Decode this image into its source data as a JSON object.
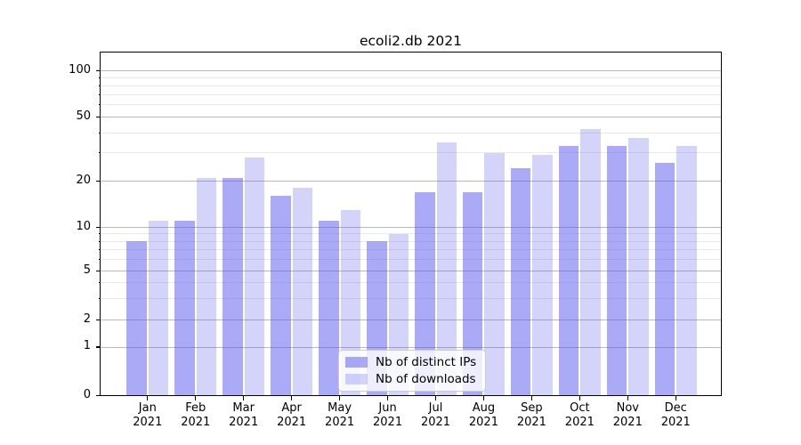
{
  "chart_data": {
    "type": "bar",
    "title": "ecoli2.db 2021",
    "categories": [
      "Jan 2021",
      "Feb 2021",
      "Mar 2021",
      "Apr 2021",
      "May 2021",
      "Jun 2021",
      "Jul 2021",
      "Aug 2021",
      "Sep 2021",
      "Oct 2021",
      "Nov 2021",
      "Dec 2021"
    ],
    "series": [
      {
        "name": "Nb of distinct IPs",
        "color": "rgba(85,85,240,0.5)",
        "values": [
          8,
          11,
          21,
          16,
          11,
          8,
          17,
          17,
          24,
          33,
          33,
          26
        ]
      },
      {
        "name": "Nb of downloads",
        "color": "rgba(85,85,240,0.25)",
        "values": [
          11,
          21,
          28,
          18,
          13,
          9,
          35,
          30,
          29,
          42,
          37,
          33
        ]
      }
    ],
    "xlabel": "",
    "ylabel": "",
    "yscale": "symlog",
    "ylim": [
      0,
      130
    ],
    "y_ticks": [
      0,
      1,
      2,
      5,
      10,
      20,
      50,
      100
    ],
    "grid": true,
    "legend_position": "lower center"
  },
  "y_axis": {
    "ticks": [
      {
        "label": "100",
        "value": 100
      },
      {
        "label": "50",
        "value": 50
      },
      {
        "label": "20",
        "value": 20
      },
      {
        "label": "10",
        "value": 10
      },
      {
        "label": "5",
        "value": 5
      },
      {
        "label": "2",
        "value": 2
      },
      {
        "label": "1",
        "value": 1
      },
      {
        "label": "0",
        "value": 0
      }
    ],
    "minor_ticks": [
      3,
      4,
      6,
      7,
      8,
      9,
      30,
      40,
      60,
      70,
      80,
      90
    ]
  },
  "x_axis": {
    "ticks": [
      {
        "month": "Jan",
        "year": "2021"
      },
      {
        "month": "Feb",
        "year": "2021"
      },
      {
        "month": "Mar",
        "year": "2021"
      },
      {
        "month": "Apr",
        "year": "2021"
      },
      {
        "month": "May",
        "year": "2021"
      },
      {
        "month": "Jun",
        "year": "2021"
      },
      {
        "month": "Jul",
        "year": "2021"
      },
      {
        "month": "Aug",
        "year": "2021"
      },
      {
        "month": "Sep",
        "year": "2021"
      },
      {
        "month": "Oct",
        "year": "2021"
      },
      {
        "month": "Nov",
        "year": "2021"
      },
      {
        "month": "Dec",
        "year": "2021"
      }
    ]
  },
  "legend": {
    "items": [
      {
        "label": "Nb of distinct IPs"
      },
      {
        "label": "Nb of downloads"
      }
    ]
  },
  "colors": {
    "bar_base": "#5555f0",
    "distinct_ips_fill": "rgba(85,85,240,0.5)",
    "downloads_fill": "rgba(85,85,240,0.25)",
    "grid_major": "#b9b9b9",
    "grid_minor": "#e9e9e9",
    "axis": "#000000",
    "legend_border": "#cccccc",
    "legend_background": "rgba(255,255,255,0.8)"
  }
}
